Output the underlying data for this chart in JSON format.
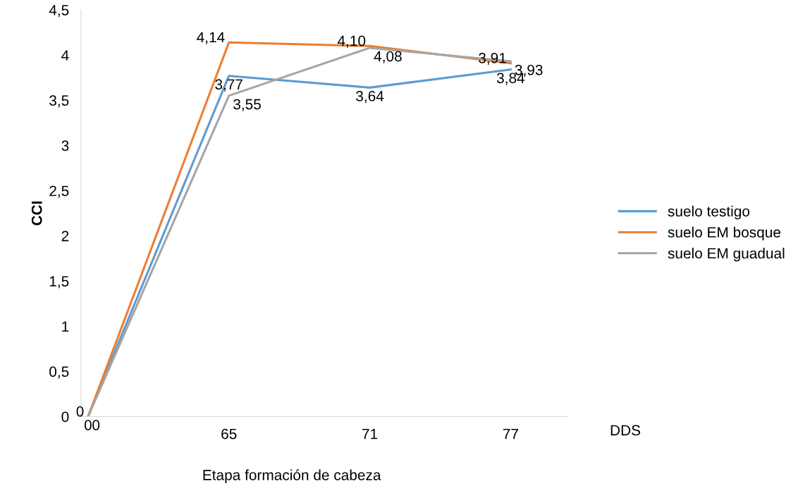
{
  "chart_data": {
    "type": "line",
    "ylabel": "CCI",
    "xlabel": "DDS",
    "annotations": [
      "Etapa formación de cabeza"
    ],
    "categories": [
      null,
      "65",
      "71",
      "77"
    ],
    "series": [
      {
        "name": "suelo testigo",
        "color": "#5b9bd5",
        "values": [
          0,
          3.77,
          3.64,
          3.84
        ],
        "value_labels": [
          "0",
          "3,77",
          "3,64",
          "3,84"
        ]
      },
      {
        "name": "suelo EM bosque",
        "color": "#ed7d31",
        "values": [
          0,
          4.14,
          4.1,
          3.91
        ],
        "value_labels": [
          "0",
          "4,14",
          "4,10",
          "3,91"
        ]
      },
      {
        "name": "suelo EM guadual",
        "color": "#a5a5a5",
        "values": [
          0,
          3.55,
          4.08,
          3.93
        ],
        "value_labels": [
          "0",
          "3,55",
          "4,08",
          "3,93"
        ]
      }
    ],
    "ylim": [
      0,
      4.5
    ],
    "yticks": [
      {
        "value": 0,
        "label": "0"
      },
      {
        "value": 0.5,
        "label": "0,5"
      },
      {
        "value": 1,
        "label": "1"
      },
      {
        "value": 1.5,
        "label": "1,5"
      },
      {
        "value": 2,
        "label": "2"
      },
      {
        "value": 2.5,
        "label": "2,5"
      },
      {
        "value": 3,
        "label": "3"
      },
      {
        "value": 3.5,
        "label": "3,5"
      },
      {
        "value": 4,
        "label": "4"
      },
      {
        "value": 4.5,
        "label": "4,5"
      }
    ],
    "grid": false,
    "legend": "right",
    "marker": "none",
    "line_style": "solid"
  }
}
